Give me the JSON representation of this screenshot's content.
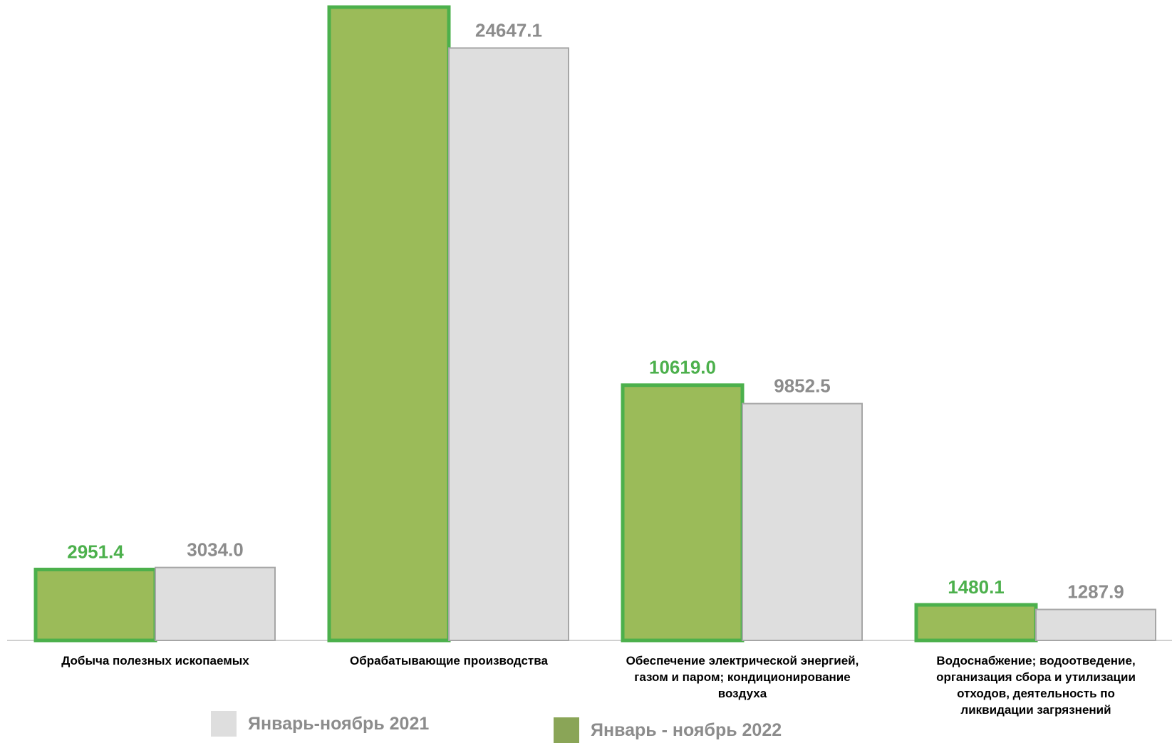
{
  "chart_data": {
    "type": "bar",
    "categories": [
      [
        "Добыча полезных  ископаемых"
      ],
      [
        "Обрабатывающие производства"
      ],
      [
        "Обеспечение электрической энергией,",
        "газом и паром; кондиционирование",
        "воздуха"
      ],
      [
        "Водоснабжение; водоотведение,",
        "организация сбора и утилизации",
        "отходов, деятельность по",
        "ликвидации загрязнений"
      ]
    ],
    "series": [
      {
        "name": "Январь - ноябрь 2022",
        "values": [
          2951.4,
          null,
          10619.0,
          1480.1
        ],
        "labels": [
          "2951.4",
          "",
          "10619.0",
          "1480.1"
        ],
        "fill": "#9bbb59",
        "stroke": "#4cb04c",
        "label_color": "#4cb04c"
      },
      {
        "name": "Январь-ноябрь 2021",
        "values": [
          3034.0,
          24647.1,
          9852.5,
          1287.9
        ],
        "labels": [
          "3034.0",
          "24647.1",
          "9852.5",
          "1287.9"
        ],
        "fill": "#dedede",
        "stroke": "#a6a6a6",
        "label_color": "#8c8c8c"
      }
    ],
    "note": "The 2022 bar for 'Обрабатывающие производства' extends beyond the top of the plot and carries no visible data label.",
    "xlabel": "",
    "ylabel": "",
    "ylim": [
      0,
      28000
    ],
    "grid": false,
    "legend_position": "bottom"
  },
  "legend": [
    {
      "label": "Январь-ноябрь 2021",
      "color": "#dedede"
    },
    {
      "label": "Январь - ноябрь 2022",
      "color": "#8aa557"
    }
  ]
}
